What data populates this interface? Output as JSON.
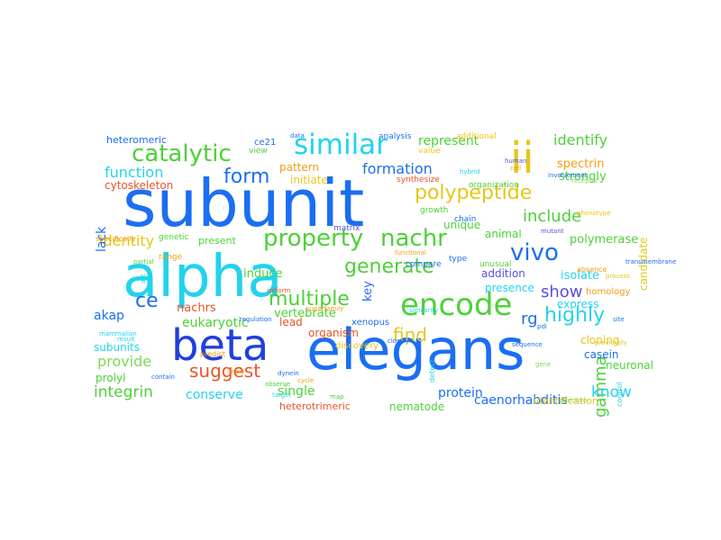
{
  "word_cloud": {
    "colors": {
      "blue": "#1b6ef3",
      "darkblue": "#1f3fe0",
      "cyan": "#22d3ee",
      "lightcyan": "#3fe0f0",
      "green": "#4cd137",
      "lime": "#7ed957",
      "yellow": "#e6c619",
      "orange": "#f39c12",
      "red": "#e8542a",
      "purple": "#5a4ee8"
    },
    "words": [
      {
        "text": "subunit",
        "color": "blue",
        "rotated": false
      },
      {
        "text": "elegans",
        "color": "blue",
        "rotated": false
      },
      {
        "text": "alpha",
        "color": "cyan",
        "rotated": false
      },
      {
        "text": "beta",
        "color": "darkblue",
        "rotated": false
      },
      {
        "text": "ii",
        "color": "yellow",
        "rotated": false
      },
      {
        "text": "encode",
        "color": "green",
        "rotated": false
      },
      {
        "text": "similar",
        "color": "cyan",
        "rotated": false
      },
      {
        "text": "property",
        "color": "green",
        "rotated": false
      },
      {
        "text": "nachr",
        "color": "green",
        "rotated": false
      },
      {
        "text": "vivo",
        "color": "blue",
        "rotated": false
      },
      {
        "text": "catalytic",
        "color": "green",
        "rotated": false
      },
      {
        "text": "generate",
        "color": "green",
        "rotated": false
      },
      {
        "text": "multiple",
        "color": "green",
        "rotated": false
      },
      {
        "text": "polypeptide",
        "color": "yellow",
        "rotated": false
      },
      {
        "text": "highly",
        "color": "cyan",
        "rotated": false
      },
      {
        "text": "form",
        "color": "blue",
        "rotated": false
      },
      {
        "text": "find",
        "color": "yellow",
        "rotated": false
      },
      {
        "text": "suggest",
        "color": "red",
        "rotated": false
      },
      {
        "text": "show",
        "color": "purple",
        "rotated": false
      },
      {
        "text": "include",
        "color": "green",
        "rotated": false
      },
      {
        "text": "formation",
        "color": "blue",
        "rotated": false
      },
      {
        "text": "function",
        "color": "cyan",
        "rotated": false
      },
      {
        "text": "ce",
        "color": "blue",
        "rotated": false
      },
      {
        "text": "gamma",
        "color": "green",
        "rotated": true
      },
      {
        "text": "rg",
        "color": "blue",
        "rotated": false
      },
      {
        "text": "integrin",
        "color": "green",
        "rotated": false
      },
      {
        "text": "know",
        "color": "cyan",
        "rotated": false
      },
      {
        "text": "identify",
        "color": "green",
        "rotated": false
      },
      {
        "text": "identity",
        "color": "yellow",
        "rotated": false
      },
      {
        "text": "represent",
        "color": "green",
        "rotated": false
      },
      {
        "text": "single",
        "color": "green",
        "rotated": false
      },
      {
        "text": "caenorhabditis",
        "color": "blue",
        "rotated": false
      },
      {
        "text": "spectrin",
        "color": "orange",
        "rotated": false
      },
      {
        "text": "strongly",
        "color": "green",
        "rotated": false
      },
      {
        "text": "candidate",
        "color": "yellow",
        "rotated": true
      },
      {
        "text": "lack",
        "color": "blue",
        "rotated": true
      },
      {
        "text": "cytoskeleton",
        "color": "red",
        "rotated": false
      },
      {
        "text": "heteromeric",
        "color": "blue",
        "rotated": false
      },
      {
        "text": "ce21",
        "color": "blue",
        "rotated": false
      },
      {
        "text": "pattern",
        "color": "orange",
        "rotated": false
      },
      {
        "text": "initiate",
        "color": "yellow",
        "rotated": false
      },
      {
        "text": "unique",
        "color": "green",
        "rotated": false
      },
      {
        "text": "animal",
        "color": "green",
        "rotated": false
      },
      {
        "text": "polymerase",
        "color": "green",
        "rotated": false
      },
      {
        "text": "present",
        "color": "green",
        "rotated": false
      },
      {
        "text": "induce",
        "color": "green",
        "rotated": false
      },
      {
        "text": "key",
        "color": "blue",
        "rotated": true
      },
      {
        "text": "vertebrate",
        "color": "green",
        "rotated": false
      },
      {
        "text": "organism",
        "color": "red",
        "rotated": false
      },
      {
        "text": "nachrs",
        "color": "red",
        "rotated": false
      },
      {
        "text": "eukaryotic",
        "color": "green",
        "rotated": false
      },
      {
        "text": "lead",
        "color": "red",
        "rotated": false
      },
      {
        "text": "isolate",
        "color": "cyan",
        "rotated": false
      },
      {
        "text": "addition",
        "color": "purple",
        "rotated": false
      },
      {
        "text": "presence",
        "color": "cyan",
        "rotated": false
      },
      {
        "text": "express",
        "color": "cyan",
        "rotated": false
      },
      {
        "text": "cloning",
        "color": "yellow",
        "rotated": false
      },
      {
        "text": "casein",
        "color": "blue",
        "rotated": false
      },
      {
        "text": "neuronal",
        "color": "green",
        "rotated": false
      },
      {
        "text": "akap",
        "color": "blue",
        "rotated": false
      },
      {
        "text": "subunits",
        "color": "cyan",
        "rotated": false
      },
      {
        "text": "provide",
        "color": "lime",
        "rotated": false
      },
      {
        "text": "prolyl",
        "color": "green",
        "rotated": false
      },
      {
        "text": "conserve",
        "color": "cyan",
        "rotated": false
      },
      {
        "text": "protein",
        "color": "blue",
        "rotated": false
      },
      {
        "text": "nematode",
        "color": "green",
        "rotated": false
      },
      {
        "text": "heterotrimeric",
        "color": "red",
        "rotated": false
      },
      {
        "text": "identification",
        "color": "yellow",
        "rotated": false
      },
      {
        "text": "discovery",
        "color": "yellow",
        "rotated": false
      },
      {
        "text": "xenopus",
        "color": "blue",
        "rotated": false
      },
      {
        "text": "homology",
        "color": "orange",
        "rotated": false
      },
      {
        "text": "analysis",
        "color": "blue",
        "rotated": false
      },
      {
        "text": "additional",
        "color": "yellow",
        "rotated": false
      },
      {
        "text": "value",
        "color": "yellow",
        "rotated": false
      },
      {
        "text": "synthesize",
        "color": "red",
        "rotated": false
      },
      {
        "text": "organization",
        "color": "green",
        "rotated": false
      },
      {
        "text": "growth",
        "color": "green",
        "rotated": false
      },
      {
        "text": "chain",
        "color": "blue",
        "rotated": false
      },
      {
        "text": "type",
        "color": "blue",
        "rotated": false
      },
      {
        "text": "compare",
        "color": "blue",
        "rotated": false
      },
      {
        "text": "unusual",
        "color": "green",
        "rotated": false
      },
      {
        "text": "absence",
        "color": "orange",
        "rotated": false
      },
      {
        "text": "view",
        "color": "green",
        "rotated": false
      },
      {
        "text": "range",
        "color": "orange",
        "rotated": false
      },
      {
        "text": "genetic",
        "color": "green",
        "rotated": false
      },
      {
        "text": "matrix",
        "color": "purple",
        "rotated": false
      },
      {
        "text": "detect",
        "color": "cyan",
        "rotated": true
      },
      {
        "text": "control",
        "color": "cyan",
        "rotated": true
      },
      {
        "text": "predict",
        "color": "orange",
        "rotated": false
      },
      {
        "text": "specifically",
        "color": "orange",
        "rotated": false
      },
      {
        "text": "act",
        "color": "cyan",
        "rotated": true
      },
      {
        "text": "data",
        "color": "blue",
        "rotated": false
      },
      {
        "text": "functional",
        "color": "orange",
        "rotated": false
      },
      {
        "text": "hybrid",
        "color": "cyan",
        "rotated": false
      },
      {
        "text": "closely",
        "color": "blue",
        "rotated": false
      },
      {
        "text": "similarity",
        "color": "cyan",
        "rotated": false
      },
      {
        "text": "regulation",
        "color": "blue",
        "rotated": false
      },
      {
        "text": "isoform",
        "color": "red",
        "rotated": false
      },
      {
        "text": "partial",
        "color": "green",
        "rotated": false
      },
      {
        "text": "superfamily",
        "color": "orange",
        "rotated": false
      },
      {
        "text": "receptor",
        "color": "lime",
        "rotated": false
      },
      {
        "text": "sequence",
        "color": "blue",
        "rotated": false
      },
      {
        "text": "human",
        "color": "purple",
        "rotated": false
      },
      {
        "text": "cell",
        "color": "orange",
        "rotated": false
      },
      {
        "text": "involvement",
        "color": "blue",
        "rotated": false
      },
      {
        "text": "phenotype",
        "color": "yellow",
        "rotated": false
      },
      {
        "text": "result",
        "color": "cyan",
        "rotated": false
      },
      {
        "text": "contain",
        "color": "blue",
        "rotated": false
      },
      {
        "text": "mammalian",
        "color": "cyan",
        "rotated": false
      },
      {
        "text": "site",
        "color": "blue",
        "rotated": false
      },
      {
        "text": "selective",
        "color": "lime",
        "rotated": false
      },
      {
        "text": "previously",
        "color": "yellow",
        "rotated": false
      },
      {
        "text": "transmembrane",
        "color": "blue",
        "rotated": false
      },
      {
        "text": "pdi",
        "color": "blue",
        "rotated": false
      },
      {
        "text": "dynein",
        "color": "blue",
        "rotated": false
      },
      {
        "text": "target",
        "color": "cyan",
        "rotated": false
      },
      {
        "text": "observe",
        "color": "green",
        "rotated": false
      },
      {
        "text": "cycle",
        "color": "orange",
        "rotated": false
      },
      {
        "text": "map",
        "color": "green",
        "rotated": false
      },
      {
        "text": "imply",
        "color": "orange",
        "rotated": false
      },
      {
        "text": "mutant",
        "color": "purple",
        "rotated": false
      },
      {
        "text": "process",
        "color": "yellow",
        "rotated": false
      },
      {
        "text": "gene",
        "color": "lime",
        "rotated": false
      },
      {
        "text": "kinase",
        "color": "blue",
        "rotated": false
      },
      {
        "text": "region",
        "color": "cyan",
        "rotated": false
      }
    ]
  }
}
